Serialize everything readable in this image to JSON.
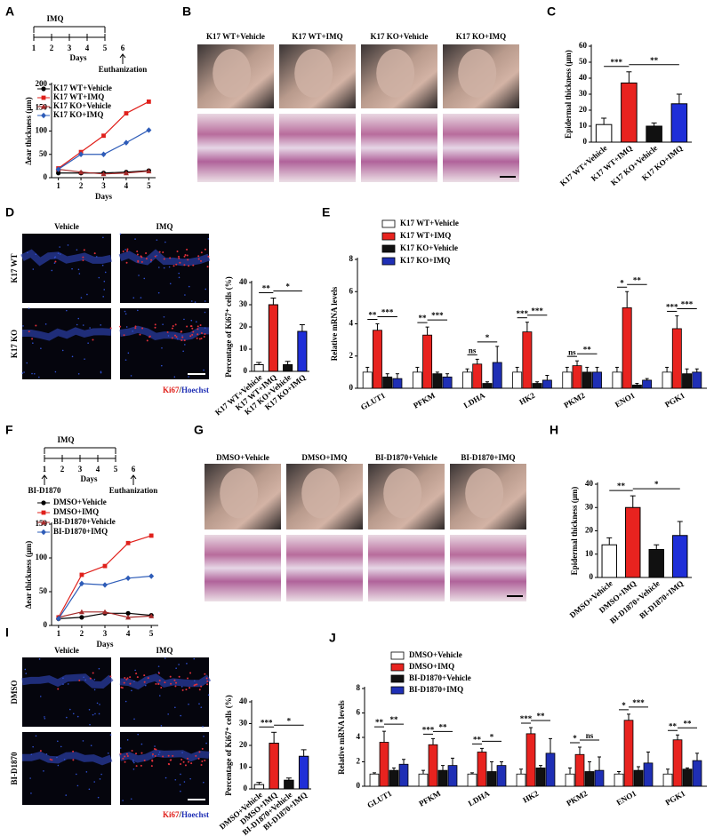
{
  "panel_labels": [
    "A",
    "B",
    "C",
    "D",
    "E",
    "F",
    "G",
    "H",
    "I",
    "J"
  ],
  "timelines": [
    {
      "treatment": "IMQ",
      "days": [
        "1",
        "2",
        "3",
        "4",
        "5",
        "6"
      ],
      "axis_label": "Days",
      "endpoint": "Euthanization"
    },
    {
      "treatment": "IMQ",
      "days": [
        "1",
        "2",
        "3",
        "4",
        "5",
        "6"
      ],
      "axis_label": "Days",
      "endpoint": "Euthanization",
      "pretreatment": "BI-D1870"
    }
  ],
  "image_panels": [
    {
      "kind": "photo-he",
      "columns": [
        "K17 WT+Vehicle",
        "K17 WT+IMQ",
        "K17 KO+Vehicle",
        "K17 KO+IMQ"
      ]
    },
    {
      "kind": "fluorescence",
      "columns": [
        "Vehicle",
        "IMQ"
      ],
      "rows": [
        "K17 WT",
        "K17 KO"
      ],
      "stain_legend": [
        "Ki67",
        "/",
        "Hoechst"
      ]
    },
    {
      "kind": "photo-he",
      "columns": [
        "DMSO+Vehicle",
        "DMSO+IMQ",
        "BI-D1870+Vehicle",
        "BI-D1870+IMQ"
      ]
    },
    {
      "kind": "fluorescence",
      "columns": [
        "Vehicle",
        "IMQ"
      ],
      "rows": [
        "DMSO",
        "BI-D1870"
      ],
      "stain_legend": [
        "Ki67",
        "/",
        "Hoechst"
      ]
    }
  ],
  "chart_data": [
    {
      "type": "line",
      "y_label": "Δear thickness (μm)",
      "x_label": "Days",
      "x": [
        1,
        2,
        3,
        4,
        5
      ],
      "xlim": [
        0.7,
        5.3
      ],
      "xticks": [
        1,
        2,
        3,
        4,
        5
      ],
      "ylim": [
        0,
        200
      ],
      "yticks": [
        0,
        50,
        100,
        150,
        200
      ],
      "series": [
        {
          "name": "K17 WT+Vehicle",
          "color": "#000000",
          "marker": "circle",
          "values": [
            10,
            10,
            10,
            12,
            15
          ]
        },
        {
          "name": "K17 WT+IMQ",
          "color": "#e0201b",
          "marker": "square",
          "values": [
            20,
            55,
            90,
            138,
            163
          ]
        },
        {
          "name": "K17 KO+Vehicle",
          "color": "#a52a2a",
          "marker": "triangle",
          "values": [
            18,
            12,
            8,
            10,
            14
          ]
        },
        {
          "name": "K17 KO+IMQ",
          "color": "#2e5cb8",
          "marker": "diamond",
          "values": [
            18,
            50,
            50,
            75,
            102
          ]
        }
      ]
    },
    {
      "type": "bar",
      "y_label": "Epidermal thickness (μm)",
      "categories": [
        "K17 WT+Vehicle",
        "K17 WT+IMQ",
        "K17 KO+Vehicle",
        "K17 KO+IMQ"
      ],
      "colors": [
        "#ffffff",
        "#e8231f",
        "#111111",
        "#1f2fd8"
      ],
      "values": [
        11,
        37,
        10,
        24
      ],
      "errors": [
        4,
        7,
        2,
        6
      ],
      "ylim": [
        0,
        60
      ],
      "yticks": [
        0,
        10,
        20,
        30,
        40,
        50,
        60
      ],
      "significance": [
        "***",
        "**"
      ]
    },
    {
      "type": "bar",
      "y_label": "Percentage of Ki67⁺ cells (%)",
      "categories": [
        "K17 WT+Vehicle",
        "K17 WT+IMQ",
        "K17 KO+Vehicle",
        "K17 KO+IMQ"
      ],
      "colors": [
        "#ffffff",
        "#e8231f",
        "#111111",
        "#1f2fd8"
      ],
      "values": [
        3,
        30,
        3,
        18
      ],
      "errors": [
        1,
        3,
        1.5,
        3
      ],
      "ylim": [
        0,
        40
      ],
      "yticks": [
        0,
        10,
        20,
        30,
        40
      ],
      "significance": [
        "**",
        "*"
      ]
    },
    {
      "type": "grouped-bar",
      "y_label": "Relative mRNA levels",
      "categories": [
        "GLUT1",
        "PFKM",
        "LDHA",
        "HK2",
        "PKM2",
        "ENO1",
        "PGK1"
      ],
      "ylim": [
        0,
        8
      ],
      "yticks": [
        0,
        2,
        4,
        6,
        8
      ],
      "series": [
        {
          "name": "K17 WT+Vehicle",
          "color": "#ffffff",
          "values": [
            1,
            1,
            1,
            1,
            1,
            1,
            1
          ],
          "errors": [
            0.3,
            0.3,
            0.2,
            0.3,
            0.3,
            0.3,
            0.3
          ]
        },
        {
          "name": "K17 WT+IMQ",
          "color": "#e8231f",
          "values": [
            3.6,
            3.3,
            1.5,
            3.5,
            1.4,
            5.0,
            3.7
          ],
          "errors": [
            0.4,
            0.5,
            0.3,
            0.6,
            0.3,
            1.0,
            0.8
          ]
        },
        {
          "name": "K17 KO+Vehicle",
          "color": "#111111",
          "values": [
            0.7,
            0.9,
            0.3,
            0.3,
            1.0,
            0.2,
            0.9
          ],
          "errors": [
            0.2,
            0.1,
            0.1,
            0.1,
            0.3,
            0.1,
            0.3
          ]
        },
        {
          "name": "K17 KO+IMQ",
          "color": "#1f2fb5",
          "values": [
            0.6,
            0.7,
            1.6,
            0.5,
            1.0,
            0.5,
            1.0
          ],
          "errors": [
            0.3,
            0.2,
            1.0,
            0.3,
            0.3,
            0.1,
            0.2
          ]
        }
      ],
      "significance": [
        [
          "**",
          "***"
        ],
        [
          "**",
          "***"
        ],
        [
          "ns",
          "*"
        ],
        [
          "***",
          "***"
        ],
        [
          "ns",
          "**"
        ],
        [
          "*",
          "**"
        ],
        [
          "***",
          "***"
        ]
      ]
    },
    {
      "type": "line",
      "y_label": "Δear thickness (μm)",
      "x_label": "Days",
      "x": [
        1,
        2,
        3,
        4,
        5
      ],
      "xlim": [
        0.7,
        5.3
      ],
      "xticks": [
        1,
        2,
        3,
        4,
        5
      ],
      "ylim": [
        0,
        150
      ],
      "yticks": [
        0,
        50,
        100,
        150
      ],
      "series": [
        {
          "name": "DMSO+Vehicle",
          "color": "#000000",
          "marker": "circle",
          "values": [
            10,
            12,
            18,
            18,
            15
          ]
        },
        {
          "name": "DMSO+IMQ",
          "color": "#e0201b",
          "marker": "square",
          "values": [
            12,
            75,
            88,
            122,
            133
          ]
        },
        {
          "name": "BI-D1870+Vehicle",
          "color": "#a52a2a",
          "marker": "triangle",
          "values": [
            12,
            20,
            20,
            12,
            14
          ]
        },
        {
          "name": "BI-D1870+IMQ",
          "color": "#2e5cb8",
          "marker": "diamond",
          "values": [
            10,
            62,
            60,
            70,
            73
          ]
        }
      ]
    },
    {
      "type": "bar",
      "y_label": "Epidermal thickness (μm)",
      "categories": [
        "DMSO+Vehicle",
        "DMSO+IMQ",
        "BI-D1870+Vehicle",
        "BI-D1870+IMQ"
      ],
      "colors": [
        "#ffffff",
        "#e8231f",
        "#111111",
        "#1f2fd8"
      ],
      "values": [
        14,
        30,
        12,
        18
      ],
      "errors": [
        3,
        5,
        2,
        6
      ],
      "ylim": [
        0,
        40
      ],
      "yticks": [
        0,
        10,
        20,
        30,
        40
      ],
      "significance": [
        "**",
        "*"
      ]
    },
    {
      "type": "bar",
      "y_label": "Percentage of Ki67⁺ cells (%)",
      "categories": [
        "DMSO+Vehicle",
        "DMSO+IMQ",
        "BI-D1870+Vehicle",
        "BI-D1870+IMQ"
      ],
      "colors": [
        "#ffffff",
        "#e8231f",
        "#111111",
        "#1f2fd8"
      ],
      "values": [
        2,
        21,
        4,
        15
      ],
      "errors": [
        1,
        5,
        1,
        3
      ],
      "ylim": [
        0,
        40
      ],
      "yticks": [
        0,
        10,
        20,
        30,
        40
      ],
      "significance": [
        "***",
        "*"
      ]
    },
    {
      "type": "grouped-bar",
      "y_label": "Relative mRNA levels",
      "categories": [
        "GLUT1",
        "PFKM",
        "LDHA",
        "HK2",
        "PKM2",
        "ENO1",
        "PGK1"
      ],
      "ylim": [
        0,
        8
      ],
      "yticks": [
        0,
        2,
        4,
        6,
        8
      ],
      "series": [
        {
          "name": "DMSO+Vehicle",
          "color": "#ffffff",
          "values": [
            1,
            1,
            1,
            1,
            1,
            1,
            1
          ],
          "errors": [
            0.1,
            0.3,
            0.1,
            0.4,
            0.5,
            0.2,
            0.4
          ]
        },
        {
          "name": "DMSO+IMQ",
          "color": "#e8231f",
          "values": [
            3.6,
            3.4,
            2.8,
            4.3,
            2.6,
            5.4,
            3.8
          ],
          "errors": [
            0.9,
            0.5,
            0.3,
            0.5,
            0.6,
            0.5,
            0.4
          ]
        },
        {
          "name": "BI-D1870+Vehicle",
          "color": "#111111",
          "values": [
            1.3,
            1.3,
            1.2,
            1.5,
            1.2,
            1.3,
            1.4
          ],
          "errors": [
            0.2,
            0.4,
            0.8,
            0.2,
            0.8,
            0.3,
            0.1
          ]
        },
        {
          "name": "BI-D1870+IMQ",
          "color": "#1f2fb5",
          "values": [
            1.8,
            1.7,
            1.7,
            2.7,
            1.3,
            1.9,
            2.1
          ],
          "errors": [
            0.4,
            0.6,
            0.3,
            1.2,
            1.1,
            0.9,
            0.6
          ]
        }
      ],
      "significance": [
        [
          "**",
          "**"
        ],
        [
          "***",
          "**"
        ],
        [
          "**",
          "*"
        ],
        [
          "***",
          "**"
        ],
        [
          "*",
          "ns"
        ],
        [
          "*",
          "***"
        ],
        [
          "**",
          "**"
        ]
      ]
    }
  ]
}
